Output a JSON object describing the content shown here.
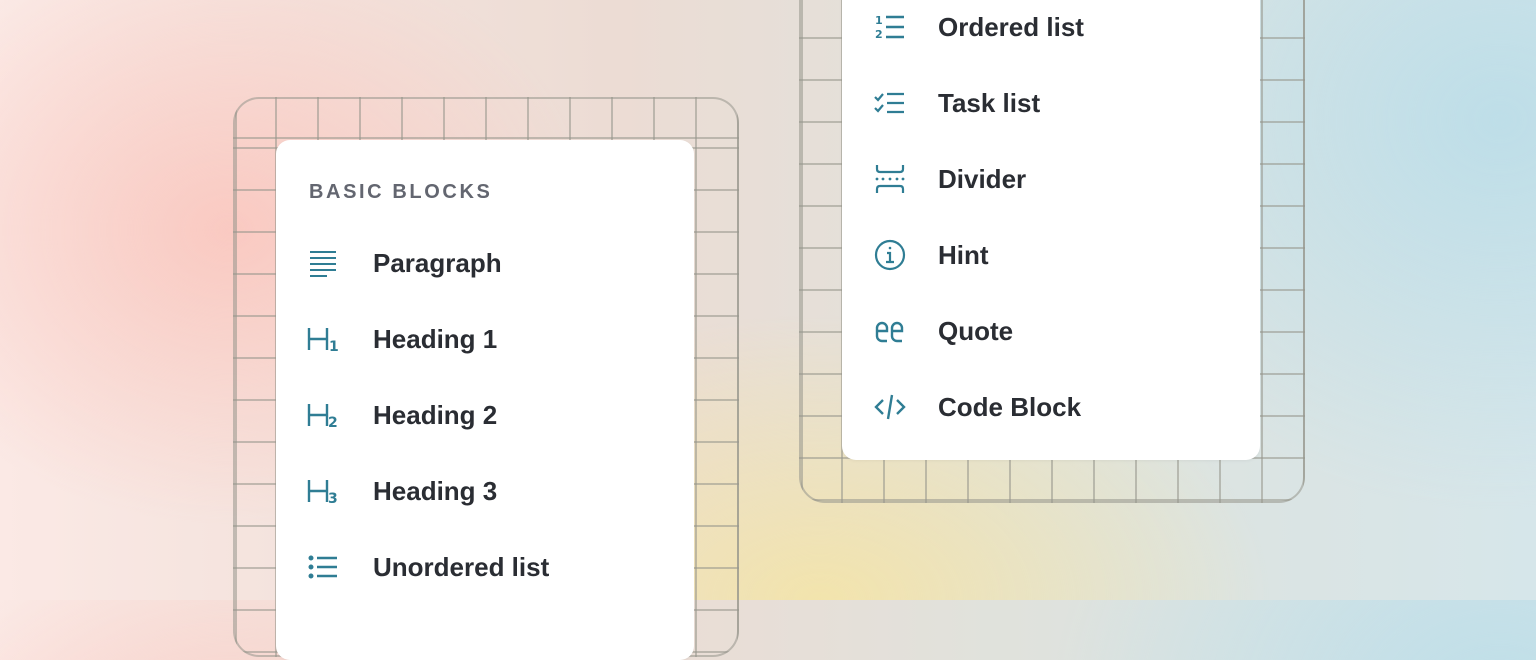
{
  "colors": {
    "icon": "#2f7d94",
    "text": "#2a2d33",
    "section_title": "#636670"
  },
  "left_menu": {
    "section_title": "BASIC BLOCKS",
    "items": [
      {
        "label": "Paragraph",
        "icon": "paragraph-icon"
      },
      {
        "label": "Heading 1",
        "icon": "heading-1-icon"
      },
      {
        "label": "Heading 2",
        "icon": "heading-2-icon"
      },
      {
        "label": "Heading 3",
        "icon": "heading-3-icon"
      },
      {
        "label": "Unordered list",
        "icon": "unordered-list-icon"
      }
    ]
  },
  "right_menu": {
    "items": [
      {
        "label": "Ordered list",
        "icon": "ordered-list-icon"
      },
      {
        "label": "Task list",
        "icon": "task-list-icon"
      },
      {
        "label": "Divider",
        "icon": "divider-icon"
      },
      {
        "label": "Hint",
        "icon": "info-icon"
      },
      {
        "label": "Quote",
        "icon": "quote-icon"
      },
      {
        "label": "Code Block",
        "icon": "code-icon"
      }
    ]
  },
  "icon_glyphs": {
    "h1": "1",
    "h2": "2",
    "h3": "3",
    "ol1": "1",
    "ol2": "2"
  }
}
